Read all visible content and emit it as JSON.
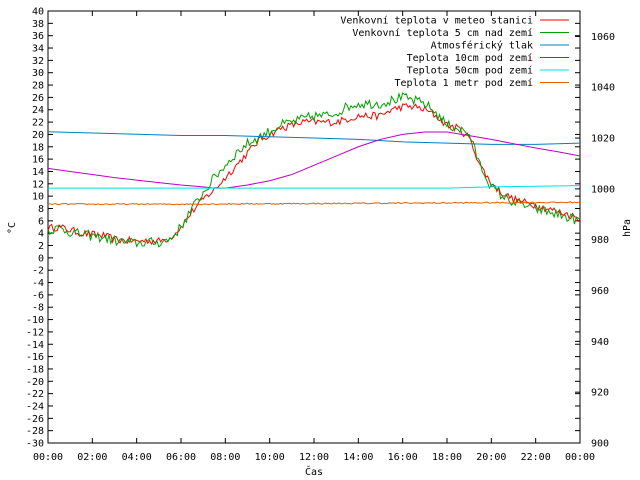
{
  "chart_data": {
    "type": "line",
    "xlabel": "Čas",
    "ylabel_left": "°C",
    "ylabel_right": "hPa",
    "x_ticks": [
      "00:00",
      "02:00",
      "04:00",
      "06:00",
      "08:00",
      "10:00",
      "12:00",
      "14:00",
      "16:00",
      "18:00",
      "20:00",
      "22:00",
      "00:00"
    ],
    "xlim_hours": [
      0,
      24
    ],
    "ylim_left": [
      -30,
      40
    ],
    "ylim_right": [
      900,
      1070
    ],
    "y_left_ticks": [
      -30,
      -28,
      -26,
      -24,
      -22,
      -20,
      -18,
      -16,
      -14,
      -12,
      -10,
      -8,
      -6,
      -4,
      -2,
      0,
      2,
      4,
      6,
      8,
      10,
      12,
      14,
      16,
      18,
      20,
      22,
      24,
      26,
      28,
      30,
      32,
      34,
      36,
      38,
      40
    ],
    "y_right_ticks": [
      900,
      920,
      940,
      960,
      980,
      1000,
      1020,
      1040,
      1060
    ],
    "grid": false,
    "legend_position": "top-right",
    "series": [
      {
        "name": "Venkovní teplota v meteo stanici",
        "color": "#ff0000",
        "axis": "left",
        "noise": 0.6,
        "points": [
          [
            0,
            4.8
          ],
          [
            0.5,
            5.0
          ],
          [
            1,
            4.5
          ],
          [
            1.5,
            4.0
          ],
          [
            2,
            3.8
          ],
          [
            2.5,
            3.6
          ],
          [
            3,
            3.0
          ],
          [
            3.5,
            2.8
          ],
          [
            4,
            2.7
          ],
          [
            4.5,
            2.8
          ],
          [
            5,
            2.7
          ],
          [
            5.5,
            3.2
          ],
          [
            6,
            5.0
          ],
          [
            6.5,
            7.5
          ],
          [
            7,
            9.5
          ],
          [
            7.5,
            11.0
          ],
          [
            8,
            13.0
          ],
          [
            8.5,
            15.0
          ],
          [
            9,
            17.0
          ],
          [
            9.5,
            19.0
          ],
          [
            10,
            20.0
          ],
          [
            10.5,
            21.0
          ],
          [
            11,
            21.5
          ],
          [
            11.5,
            22.0
          ],
          [
            12,
            22.0
          ],
          [
            12.5,
            22.0
          ],
          [
            13,
            22.0
          ],
          [
            13.5,
            22.5
          ],
          [
            14,
            23.0
          ],
          [
            14.5,
            23.0
          ],
          [
            15,
            23.0
          ],
          [
            15.5,
            24.0
          ],
          [
            16,
            24.5
          ],
          [
            16.5,
            24.5
          ],
          [
            17,
            24.0
          ],
          [
            17.5,
            23.0
          ],
          [
            18,
            21.5
          ],
          [
            18.5,
            21.0
          ],
          [
            19,
            19.5
          ],
          [
            19.5,
            15.0
          ],
          [
            20,
            12.0
          ],
          [
            20.5,
            10.5
          ],
          [
            21,
            9.5
          ],
          [
            21.5,
            9.0
          ],
          [
            22,
            8.5
          ],
          [
            22.5,
            8.0
          ],
          [
            23,
            7.5
          ],
          [
            23.5,
            7.0
          ],
          [
            24,
            6.3
          ]
        ]
      },
      {
        "name": "Venkovní teplota 5 cm nad zemí",
        "color": "#00a000",
        "axis": "left",
        "noise": 0.8,
        "points": [
          [
            0,
            4.5
          ],
          [
            0.5,
            4.8
          ],
          [
            1,
            4.2
          ],
          [
            1.5,
            3.8
          ],
          [
            2,
            3.5
          ],
          [
            2.5,
            3.3
          ],
          [
            3,
            2.8
          ],
          [
            3.5,
            2.5
          ],
          [
            4,
            2.4
          ],
          [
            4.5,
            2.5
          ],
          [
            5,
            2.5
          ],
          [
            5.5,
            3.0
          ],
          [
            6,
            5.0
          ],
          [
            6.5,
            8.0
          ],
          [
            7,
            10.5
          ],
          [
            7.5,
            13.0
          ],
          [
            8,
            15.0
          ],
          [
            8.5,
            17.0
          ],
          [
            9,
            18.5
          ],
          [
            9.5,
            19.5
          ],
          [
            10,
            20.5
          ],
          [
            10.5,
            21.5
          ],
          [
            11,
            22.0
          ],
          [
            11.5,
            22.5
          ],
          [
            12,
            23.0
          ],
          [
            12.5,
            23.0
          ],
          [
            13,
            23.5
          ],
          [
            13.5,
            24.5
          ],
          [
            14,
            25.0
          ],
          [
            14.5,
            25.0
          ],
          [
            15,
            25.0
          ],
          [
            15.5,
            25.5
          ],
          [
            16,
            26.0
          ],
          [
            16.5,
            25.5
          ],
          [
            17,
            25.0
          ],
          [
            17.5,
            23.5
          ],
          [
            18,
            21.5
          ],
          [
            18.5,
            21.0
          ],
          [
            19,
            20.0
          ],
          [
            19.5,
            15.0
          ],
          [
            20,
            11.5
          ],
          [
            20.5,
            10.0
          ],
          [
            21,
            9.0
          ],
          [
            21.5,
            8.5
          ],
          [
            22,
            8.0
          ],
          [
            22.5,
            7.5
          ],
          [
            23,
            7.0
          ],
          [
            23.5,
            6.5
          ],
          [
            24,
            6.0
          ]
        ]
      },
      {
        "name": "Atmosférický tlak",
        "color": "#0080c0",
        "axis": "right",
        "noise": 0,
        "points": [
          [
            0,
            1022.5
          ],
          [
            2,
            1022.0
          ],
          [
            4,
            1021.5
          ],
          [
            6,
            1021.0
          ],
          [
            8,
            1021.0
          ],
          [
            10,
            1020.5
          ],
          [
            12,
            1020.0
          ],
          [
            14,
            1019.5
          ],
          [
            16,
            1018.5
          ],
          [
            18,
            1018.0
          ],
          [
            20,
            1017.5
          ],
          [
            22,
            1017.5
          ],
          [
            24,
            1018.0
          ]
        ]
      },
      {
        "name": "Teplota 10cm pod zemí",
        "color": "#c000c0",
        "axis": "left",
        "noise": 0,
        "points": [
          [
            0,
            14.5
          ],
          [
            1,
            14.0
          ],
          [
            2,
            13.5
          ],
          [
            3,
            13.0
          ],
          [
            4,
            12.6
          ],
          [
            5,
            12.2
          ],
          [
            6,
            11.8
          ],
          [
            7,
            11.5
          ],
          [
            7.5,
            11.3
          ],
          [
            8,
            11.3
          ],
          [
            9,
            11.8
          ],
          [
            10,
            12.5
          ],
          [
            11,
            13.5
          ],
          [
            12,
            15.0
          ],
          [
            13,
            16.5
          ],
          [
            14,
            18.0
          ],
          [
            15,
            19.2
          ],
          [
            16,
            20.0
          ],
          [
            17,
            20.4
          ],
          [
            18,
            20.4
          ],
          [
            19,
            19.8
          ],
          [
            20,
            19.2
          ],
          [
            21,
            18.5
          ],
          [
            22,
            17.8
          ],
          [
            23,
            17.2
          ],
          [
            24,
            16.5
          ]
        ]
      },
      {
        "name": "Teplota 50cm pod zemí",
        "color": "#00e0e0",
        "axis": "left",
        "noise": 0,
        "points": [
          [
            0,
            11.3
          ],
          [
            4,
            11.3
          ],
          [
            8,
            11.3
          ],
          [
            12,
            11.3
          ],
          [
            16,
            11.3
          ],
          [
            18,
            11.3
          ],
          [
            20,
            11.5
          ],
          [
            22,
            11.6
          ],
          [
            24,
            11.7
          ]
        ]
      },
      {
        "name": "Teplota 1 metr pod zemí",
        "color": "#e06000",
        "axis": "left",
        "noise": 0.1,
        "points": [
          [
            0,
            8.7
          ],
          [
            6,
            8.7
          ],
          [
            12,
            8.8
          ],
          [
            18,
            8.9
          ],
          [
            24,
            9.0
          ]
        ]
      }
    ]
  }
}
